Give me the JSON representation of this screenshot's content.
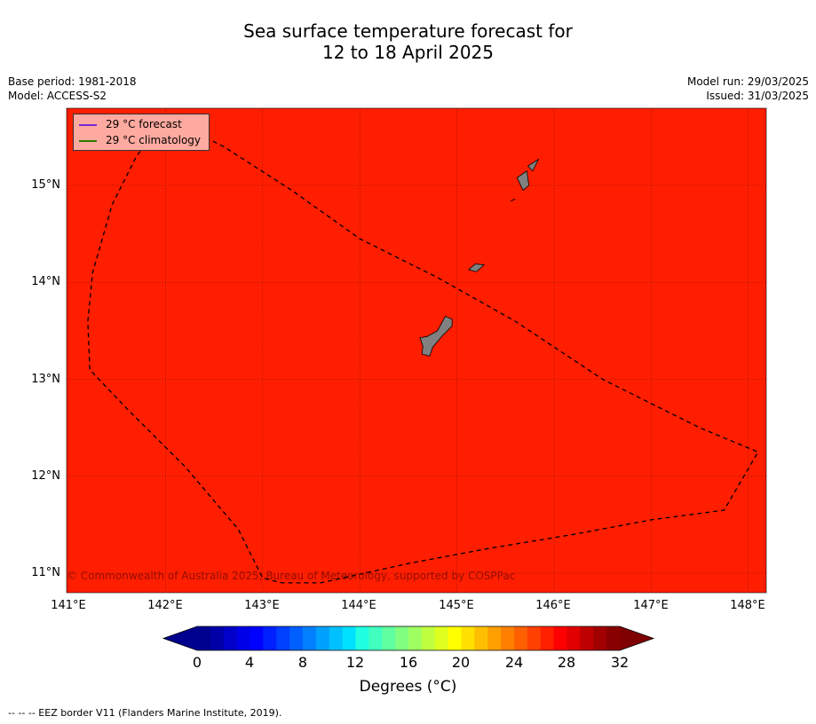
{
  "title_line1": "Sea surface temperature forecast for",
  "title_line2": "12 to 18 April 2025",
  "meta_left": [
    "Base period: 1981-2018",
    "Model: ACCESS-S2"
  ],
  "meta_right": [
    "Model run: 29/03/2025",
    "Issued: 31/03/2025"
  ],
  "legend": [
    {
      "label": "29 °C  forecast",
      "color": "#7a2ad0"
    },
    {
      "label": "29 °C  climatology",
      "color": "#2a7a00"
    }
  ],
  "copyright": "© Commonwealth of Australia 2025, Bureau of Meteorology, supported by COSPPac",
  "map": {
    "fill_color": "#ff1e00",
    "land_color": "#808080",
    "lon_range": [
      141,
      148.2
    ],
    "lat_range": [
      10.8,
      15.8
    ],
    "lon_ticks": [
      "141°E",
      "142°E",
      "143°E",
      "144°E",
      "145°E",
      "146°E",
      "147°E",
      "148°E"
    ],
    "lat_ticks": [
      "15°N",
      "14°N",
      "13°N",
      "12°N",
      "11°N"
    ],
    "eez_border": [
      [
        142.2,
        15.6
      ],
      [
        142.0,
        15.7
      ],
      [
        141.7,
        15.3
      ],
      [
        141.45,
        14.8
      ],
      [
        141.25,
        14.1
      ],
      [
        141.2,
        13.6
      ],
      [
        141.22,
        13.1
      ],
      [
        141.6,
        12.7
      ],
      [
        142.2,
        12.1
      ],
      [
        142.75,
        11.45
      ],
      [
        143.0,
        10.95
      ],
      [
        143.2,
        10.9
      ],
      [
        143.6,
        10.9
      ],
      [
        144.5,
        11.1
      ],
      [
        145.3,
        11.25
      ],
      [
        146.2,
        11.4
      ],
      [
        147.0,
        11.55
      ],
      [
        147.75,
        11.65
      ],
      [
        148.1,
        12.25
      ],
      [
        147.5,
        12.5
      ],
      [
        146.5,
        13.0
      ],
      [
        145.6,
        13.6
      ],
      [
        144.8,
        14.05
      ],
      [
        144.0,
        14.45
      ],
      [
        143.3,
        14.95
      ],
      [
        142.6,
        15.4
      ],
      [
        142.2,
        15.6
      ]
    ],
    "islands": [
      [
        [
          145.72,
          15.15
        ],
        [
          145.62,
          15.08
        ],
        [
          145.68,
          14.95
        ],
        [
          145.74,
          15.0
        ],
        [
          145.72,
          15.15
        ]
      ],
      [
        [
          145.78,
          15.15
        ],
        [
          145.84,
          15.27
        ],
        [
          145.73,
          15.2
        ],
        [
          145.78,
          15.15
        ]
      ],
      [
        [
          145.28,
          14.18
        ],
        [
          145.19,
          14.19
        ],
        [
          145.12,
          14.13
        ],
        [
          145.2,
          14.11
        ],
        [
          145.28,
          14.18
        ]
      ],
      [
        [
          144.95,
          13.62
        ],
        [
          144.88,
          13.65
        ],
        [
          144.8,
          13.5
        ],
        [
          144.69,
          13.44
        ],
        [
          144.62,
          13.43
        ],
        [
          144.65,
          13.34
        ],
        [
          144.64,
          13.26
        ],
        [
          144.72,
          13.24
        ],
        [
          144.75,
          13.33
        ],
        [
          144.85,
          13.45
        ],
        [
          144.95,
          13.55
        ],
        [
          144.95,
          13.62
        ]
      ],
      [
        [
          145.58,
          14.85
        ],
        [
          145.55,
          14.84
        ],
        [
          145.6,
          14.86
        ],
        [
          145.58,
          14.85
        ]
      ]
    ]
  },
  "colorbar": {
    "ticks": [
      "0",
      "4",
      "8",
      "12",
      "16",
      "20",
      "24",
      "28",
      "32"
    ],
    "label": "Degrees (°C)",
    "colors": [
      "#00008f",
      "#0000a8",
      "#0000c8",
      "#0000e6",
      "#0000ff",
      "#0020ff",
      "#0040ff",
      "#0060ff",
      "#0080ff",
      "#00a0ff",
      "#00c0ff",
      "#00e0ff",
      "#20ffdf",
      "#40ffbf",
      "#60ff9f",
      "#80ff80",
      "#9fff60",
      "#bfff40",
      "#dfff20",
      "#ffff00",
      "#ffe000",
      "#ffbf00",
      "#ff9f00",
      "#ff8000",
      "#ff6000",
      "#ff4000",
      "#ff2000",
      "#ff0000",
      "#e00000",
      "#bf0000",
      "#a00000",
      "#880000"
    ],
    "under_color": "#00008f",
    "over_color": "#7f0000"
  },
  "footer": "--  --  -- EEZ border V11 (Flanders Marine Institute, 2019)."
}
